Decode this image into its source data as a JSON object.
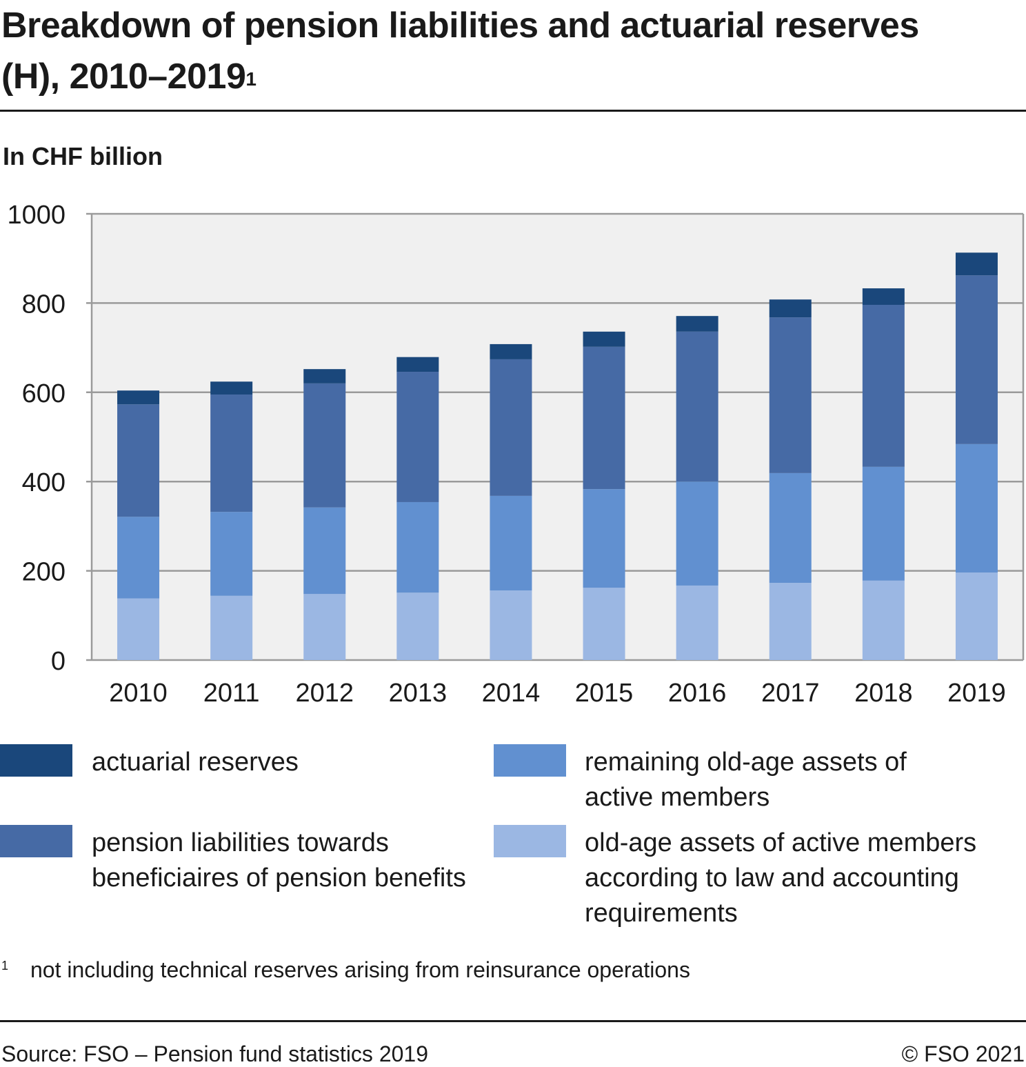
{
  "title": "Breakdown of pension liabilities and actuarial reserves (H), 2010–2019",
  "title_sup": "1",
  "unit": "In CHF billion",
  "footnote_marker": "1",
  "footnote": "not including technical reserves arising from reinsurance operations",
  "source": "Source: FSO – Pension fund statistics 2019",
  "copyright": "© FSO 2021",
  "chart_data": {
    "type": "bar",
    "stacked": true,
    "title": "Breakdown of pension liabilities and actuarial reserves (H), 2010–2019",
    "ylabel": "In CHF billion",
    "ylim": [
      0,
      1000
    ],
    "yticks": [
      0,
      200,
      400,
      600,
      800,
      1000
    ],
    "grid": true,
    "legend_position": "bottom",
    "categories": [
      "2010",
      "2011",
      "2012",
      "2013",
      "2014",
      "2015",
      "2016",
      "2017",
      "2018",
      "2019"
    ],
    "series": [
      {
        "name": "old-age assets of active members according to law and accounting requirements",
        "color": "#9bb7e3",
        "values": [
          138,
          144,
          148,
          151,
          156,
          162,
          167,
          173,
          178,
          196
        ]
      },
      {
        "name": "remaining old-age assets of active members",
        "color": "#6190d0",
        "values": [
          183,
          188,
          194,
          203,
          212,
          221,
          233,
          246,
          255,
          288
        ]
      },
      {
        "name": "pension liabilities towards beneficiaires of pension benefits",
        "color": "#466aa5",
        "values": [
          252,
          263,
          278,
          292,
          306,
          319,
          336,
          349,
          363,
          378
        ]
      },
      {
        "name": "actuarial reserves",
        "color": "#1a477b",
        "values": [
          31,
          29,
          32,
          33,
          34,
          34,
          35,
          40,
          37,
          51
        ]
      }
    ]
  }
}
